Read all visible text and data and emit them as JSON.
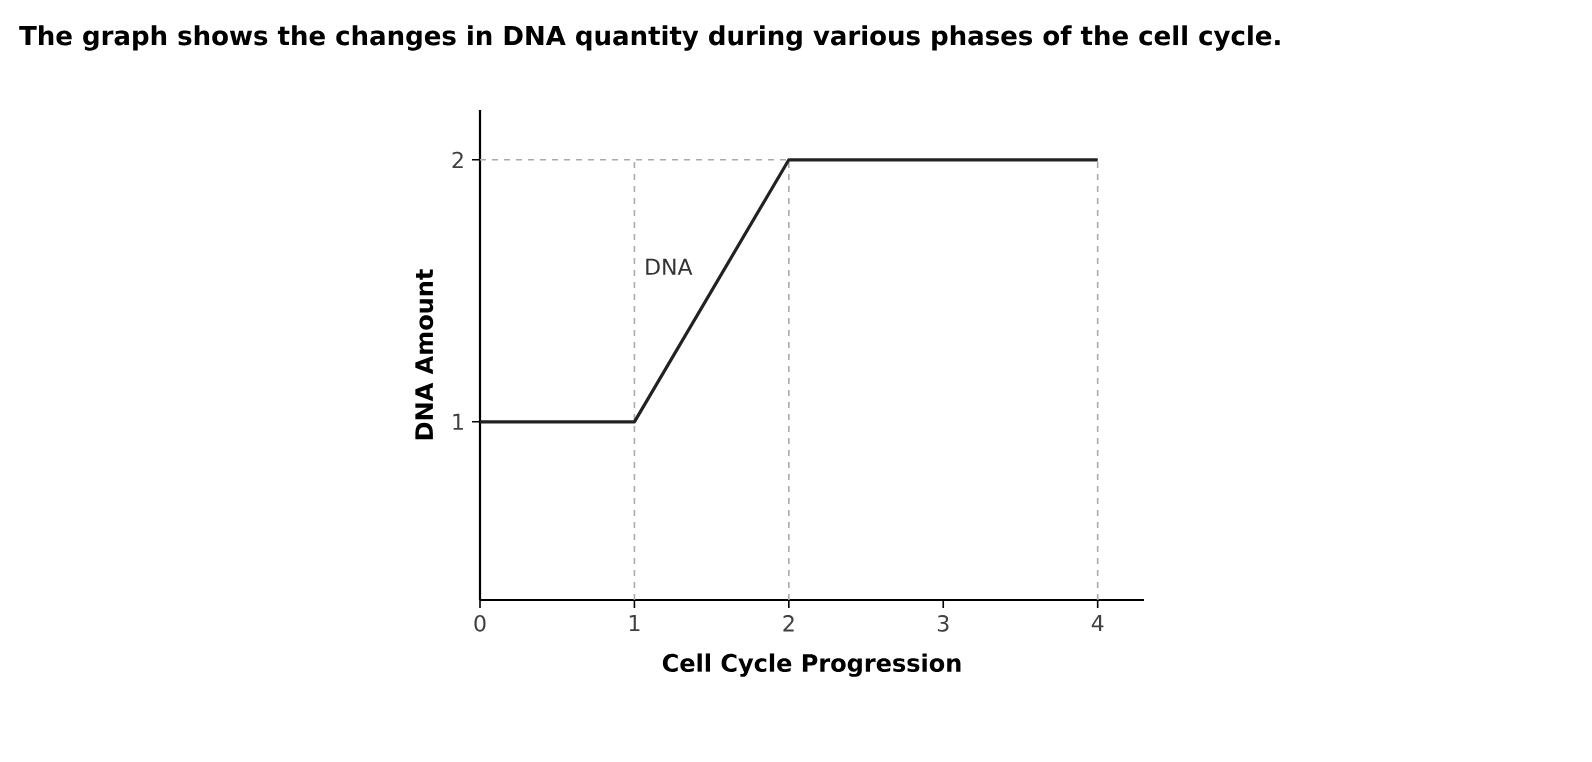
{
  "chart_data": {
    "type": "line",
    "title": "The graph shows the changes in DNA quantity during various phases of the cell cycle.",
    "xlabel": "Cell Cycle Progression",
    "ylabel": "DNA Amount",
    "x": [
      0,
      1,
      2,
      4
    ],
    "series": [
      {
        "name": "DNA",
        "color": "#222222",
        "values": [
          1,
          1,
          2,
          2
        ]
      }
    ],
    "xlim": [
      0,
      4.3
    ],
    "xticks": [
      0,
      1,
      2,
      3,
      4
    ],
    "ylim": [
      0.32,
      2.19
    ],
    "yticks": [
      1,
      2
    ],
    "grid": false,
    "legend": false,
    "marker": "none",
    "line_style": "solid",
    "ref_lines": [
      {
        "axis": "y",
        "value": 2,
        "color": "#aaaaaa",
        "line_style": "dashed"
      },
      {
        "axis": "x",
        "value": 1,
        "color": "#aaaaaa",
        "line_style": "dashed"
      },
      {
        "axis": "x",
        "value": 2,
        "color": "#aaaaaa",
        "line_style": "dashed"
      },
      {
        "axis": "x",
        "value": 4,
        "color": "#aaaaaa",
        "line_style": "dashed"
      }
    ]
  }
}
